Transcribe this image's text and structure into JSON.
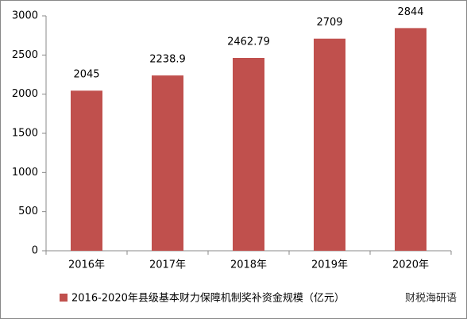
{
  "chart_data": {
    "type": "bar",
    "categories": [
      "2016年",
      "2017年",
      "2018年",
      "2019年",
      "2020年"
    ],
    "series": [
      {
        "name": "2016-2020年县级基本财力保障机制奖补资金规模（亿元）",
        "color": "#c0504d",
        "values": [
          2045,
          2238.9,
          2462.79,
          2709,
          2844
        ]
      }
    ],
    "ylim": [
      0,
      3000
    ],
    "yticks": [
      0,
      500,
      1000,
      1500,
      2000,
      2500,
      3000
    ],
    "grid": false,
    "legend": "bottom",
    "annotation": "财税海研语"
  }
}
